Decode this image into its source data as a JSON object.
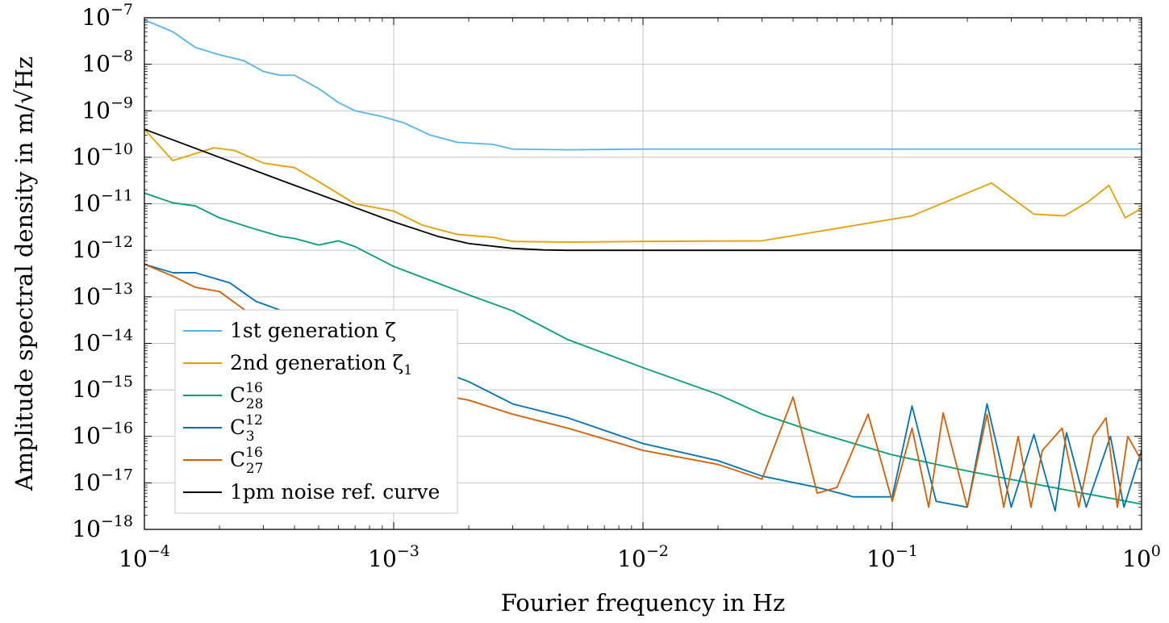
{
  "chart_data": {
    "type": "line",
    "xlabel": "Fourier frequency in Hz",
    "ylabel": "Amplitude spectral density in m/√Hz",
    "xscale": "log",
    "yscale": "log",
    "xlim": [
      0.0001,
      1
    ],
    "ylim": [
      1e-18,
      1e-07
    ],
    "grid": true,
    "legend_position": "bottom-left",
    "x_ticks": [
      {
        "base": "10",
        "exp": "−4"
      },
      {
        "base": "10",
        "exp": "−3"
      },
      {
        "base": "10",
        "exp": "−2"
      },
      {
        "base": "10",
        "exp": "−1"
      },
      {
        "base": "10",
        "exp": "0"
      }
    ],
    "y_ticks": [
      {
        "base": "10",
        "exp": "−7"
      },
      {
        "base": "10",
        "exp": "−8"
      },
      {
        "base": "10",
        "exp": "−9"
      },
      {
        "base": "10",
        "exp": "−10"
      },
      {
        "base": "10",
        "exp": "−11"
      },
      {
        "base": "10",
        "exp": "−12"
      },
      {
        "base": "10",
        "exp": "−13"
      },
      {
        "base": "10",
        "exp": "−14"
      },
      {
        "base": "10",
        "exp": "−15"
      },
      {
        "base": "10",
        "exp": "−16"
      },
      {
        "base": "10",
        "exp": "−17"
      },
      {
        "base": "10",
        "exp": "−18"
      }
    ],
    "series": [
      {
        "name": "1st generation ζ",
        "legend": {
          "main": "1st generation ζ",
          "sup": "",
          "sub": ""
        },
        "color": "#56B4E9",
        "x": [
          0.0001,
          0.00013,
          0.00016,
          0.0002,
          0.00025,
          0.0003,
          0.00035,
          0.0004,
          0.0005,
          0.0006,
          0.0007,
          0.0009,
          0.0011,
          0.0014,
          0.0018,
          0.0025,
          0.003,
          0.005,
          0.01,
          0.03,
          0.1,
          0.3,
          1
        ],
        "y": [
          9e-08,
          5e-08,
          2.3e-08,
          1.6e-08,
          1.2e-08,
          7e-09,
          5.8e-09,
          5.8e-09,
          3e-09,
          1.5e-09,
          1e-09,
          7.5e-10,
          5.5e-10,
          3e-10,
          2.1e-10,
          1.9e-10,
          1.5e-10,
          1.45e-10,
          1.5e-10,
          1.5e-10,
          1.5e-10,
          1.5e-10,
          1.5e-10
        ]
      },
      {
        "name": "2nd generation ζ₁",
        "legend": {
          "main": "2nd generation ζ",
          "sup": "",
          "sub": "1"
        },
        "color": "#E69F00",
        "x": [
          0.0001,
          0.00013,
          0.00016,
          0.00019,
          0.00023,
          0.0003,
          0.0004,
          0.0005,
          0.0007,
          0.001,
          0.0013,
          0.0018,
          0.0025,
          0.003,
          0.005,
          0.01,
          0.03,
          0.12,
          0.25,
          0.37,
          0.49,
          0.61,
          0.74,
          0.86,
          1
        ],
        "y": [
          4e-10,
          8.5e-11,
          1.2e-10,
          1.6e-10,
          1.4e-10,
          7.5e-11,
          6e-11,
          3e-11,
          1e-11,
          7e-12,
          3.5e-12,
          2.2e-12,
          1.9e-12,
          1.55e-12,
          1.5e-12,
          1.55e-12,
          1.6e-12,
          5.5e-12,
          2.8e-11,
          6e-12,
          5.5e-12,
          1.1e-11,
          2.5e-11,
          5e-12,
          8e-12
        ]
      },
      {
        "name": "C₂₈¹⁶",
        "legend": {
          "main": "C",
          "sup": "16",
          "sub": "28"
        },
        "color": "#009E73",
        "x": [
          0.0001,
          0.00013,
          0.00016,
          0.0002,
          0.00027,
          0.00035,
          0.0004,
          0.0005,
          0.0006,
          0.0007,
          0.001,
          0.002,
          0.003,
          0.005,
          0.01,
          0.02,
          0.03,
          0.05,
          0.1,
          0.2,
          0.5,
          1
        ],
        "y": [
          1.7e-11,
          1.05e-11,
          9e-12,
          5e-12,
          3e-12,
          2e-12,
          1.8e-12,
          1.3e-12,
          1.6e-12,
          1.2e-12,
          4.5e-13,
          1.1e-13,
          5e-14,
          1.2e-14,
          3e-15,
          8e-16,
          3e-16,
          1.2e-16,
          4e-17,
          1.8e-17,
          7e-18,
          3.5e-18
        ]
      },
      {
        "name": "C₃¹²",
        "legend": {
          "main": "C",
          "sup": "12",
          "sub": "3"
        },
        "color": "#0072B2",
        "x": [
          0.0001,
          0.00013,
          0.00016,
          0.00022,
          0.00028,
          0.0004,
          0.0006,
          0.001,
          0.002,
          0.003,
          0.005,
          0.01,
          0.02,
          0.03,
          0.05,
          0.07,
          0.1,
          0.12,
          0.15,
          0.2,
          0.24,
          0.3,
          0.37,
          0.45,
          0.5,
          0.6,
          0.75,
          0.85,
          1
        ],
        "y": [
          5e-13,
          3.3e-13,
          3.3e-13,
          2e-13,
          8e-14,
          4e-14,
          2e-14,
          6e-15,
          1.5e-15,
          5e-16,
          2.5e-16,
          7e-17,
          3e-17,
          1.4e-17,
          8e-18,
          5e-18,
          5e-18,
          4.5e-16,
          4e-18,
          3e-18,
          5e-16,
          3e-18,
          1.1e-16,
          2.5e-18,
          1.2e-16,
          3e-18,
          1e-16,
          3e-18,
          5e-17
        ]
      },
      {
        "name": "C₂₇¹⁶",
        "legend": {
          "main": "C",
          "sup": "16",
          "sub": "27"
        },
        "color": "#D55E00",
        "x": [
          0.0001,
          0.00013,
          0.00016,
          0.0002,
          0.00028,
          0.0004,
          0.0006,
          0.001,
          0.0015,
          0.002,
          0.003,
          0.005,
          0.01,
          0.02,
          0.03,
          0.04,
          0.05,
          0.06,
          0.08,
          0.1,
          0.12,
          0.14,
          0.16,
          0.2,
          0.24,
          0.28,
          0.32,
          0.36,
          0.4,
          0.48,
          0.56,
          0.64,
          0.72,
          0.8,
          0.88,
          1
        ],
        "y": [
          5e-13,
          2.8e-13,
          1.6e-13,
          1.3e-13,
          3.5e-14,
          1.4e-14,
          6e-15,
          2.5e-15,
          8e-16,
          6e-16,
          3e-16,
          1.5e-16,
          5e-17,
          2.5e-17,
          1.2e-17,
          7e-16,
          6e-18,
          8e-18,
          3e-16,
          4e-18,
          1.5e-16,
          3e-18,
          3.2e-16,
          3e-18,
          3e-16,
          3e-18,
          1e-16,
          3e-18,
          5e-17,
          1.5e-16,
          3e-18,
          1e-16,
          2.5e-16,
          3e-18,
          1e-16,
          3e-17
        ]
      },
      {
        "name": "1pm noise ref. curve",
        "legend": {
          "main": "1pm noise ref. curve",
          "sup": "",
          "sub": ""
        },
        "color": "#000000",
        "x": [
          0.0001,
          0.0002,
          0.0004,
          0.0007,
          0.001,
          0.0015,
          0.002,
          0.003,
          0.004,
          0.005,
          0.007,
          0.01,
          0.1,
          1
        ],
        "y": [
          4e-10,
          1e-10,
          2.5e-11,
          8.3e-12,
          4.1e-12,
          2e-12,
          1.4e-12,
          1.1e-12,
          1.02e-12,
          1e-12,
          1e-12,
          1e-12,
          1e-12,
          1e-12
        ]
      }
    ]
  }
}
